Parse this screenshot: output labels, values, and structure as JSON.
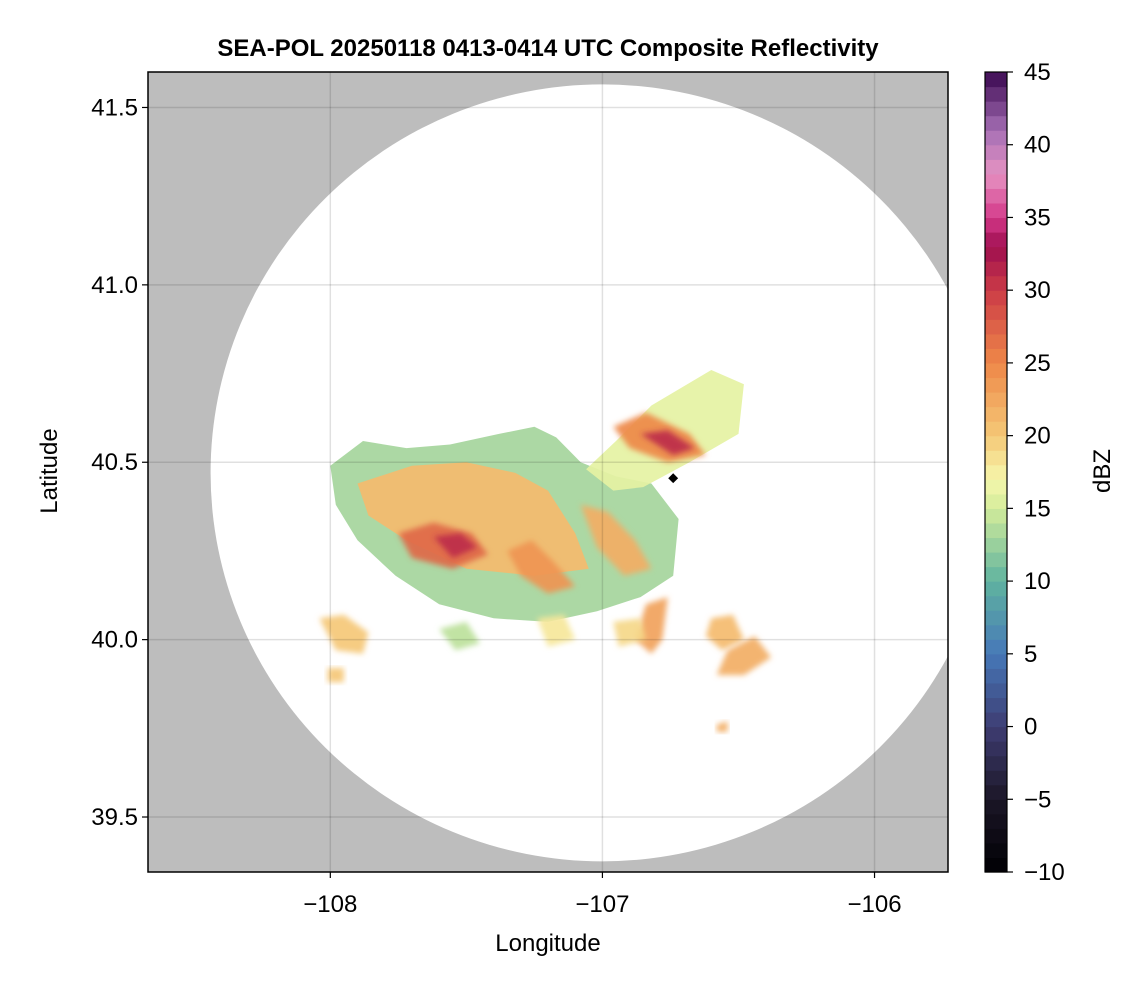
{
  "chart_data": {
    "type": "heatmap",
    "title": "SEA-POL 20250118 0413-0414 UTC Composite Reflectivity",
    "xlabel": "Longitude",
    "ylabel": "Latitude",
    "xlim": [
      -108.67,
      -105.73
    ],
    "ylim": [
      39.345,
      41.6
    ],
    "xticks": [
      -108,
      -107,
      -106
    ],
    "xtick_labels": [
      "−108",
      "−107",
      "−106"
    ],
    "yticks": [
      39.5,
      40.0,
      40.5,
      41.0,
      41.5
    ],
    "ytick_labels": [
      "39.5",
      "40.0",
      "40.5",
      "41.0",
      "41.5"
    ],
    "grid": true,
    "background_color": "#bdbdbd",
    "radar_coverage": {
      "center_lon": -107.0,
      "center_lat": 40.47,
      "lon_radius": 1.44,
      "lat_radius": 1.095,
      "fill_color": "#ffffff"
    },
    "radar_site": {
      "lon": -106.74,
      "lat": 40.455
    },
    "colorbar": {
      "label": "dBZ",
      "range": [
        -10,
        45
      ],
      "ticks": [
        -10,
        -5,
        0,
        5,
        10,
        15,
        20,
        25,
        30,
        35,
        40,
        45
      ],
      "tick_labels": [
        "−10",
        "−5",
        "0",
        "5",
        "10",
        "15",
        "20",
        "25",
        "30",
        "35",
        "40",
        "45"
      ],
      "colorscale": [
        [
          -10,
          "#000004"
        ],
        [
          -5,
          "#1b1626"
        ],
        [
          0,
          "#3e3d73"
        ],
        [
          5,
          "#4678b8"
        ],
        [
          10,
          "#5fb3a0"
        ],
        [
          15,
          "#d3ec9a"
        ],
        [
          17,
          "#f6f7ac"
        ],
        [
          20,
          "#f5c877"
        ],
        [
          25,
          "#ee8848"
        ],
        [
          30,
          "#cc3b47"
        ],
        [
          33,
          "#9e0e4f"
        ],
        [
          35,
          "#d4398a"
        ],
        [
          38,
          "#e693c2"
        ],
        [
          41,
          "#a56fb5"
        ],
        [
          45,
          "#3b0850"
        ]
      ]
    },
    "echo_regions": [
      {
        "shape": [
          [
            -108.0,
            40.49
          ],
          [
            -107.88,
            40.56
          ],
          [
            -107.72,
            40.54
          ],
          [
            -107.56,
            40.55
          ],
          [
            -107.38,
            40.58
          ],
          [
            -107.25,
            40.6
          ],
          [
            -107.17,
            40.57
          ],
          [
            -107.08,
            40.5
          ],
          [
            -106.95,
            40.46
          ],
          [
            -106.82,
            40.44
          ],
          [
            -106.72,
            40.34
          ],
          [
            -106.74,
            40.18
          ],
          [
            -106.86,
            40.12
          ],
          [
            -107.02,
            40.08
          ],
          [
            -107.2,
            40.05
          ],
          [
            -107.4,
            40.06
          ],
          [
            -107.6,
            40.1
          ],
          [
            -107.76,
            40.18
          ],
          [
            -107.9,
            40.28
          ],
          [
            -107.98,
            40.38
          ]
        ],
        "value": 13
      },
      {
        "shape": [
          [
            -107.06,
            40.48
          ],
          [
            -106.95,
            40.56
          ],
          [
            -106.82,
            40.66
          ],
          [
            -106.6,
            40.76
          ],
          [
            -106.48,
            40.72
          ],
          [
            -106.5,
            40.58
          ],
          [
            -106.68,
            40.5
          ],
          [
            -106.85,
            40.43
          ],
          [
            -106.96,
            40.42
          ]
        ],
        "value": 16
      },
      {
        "shape": [
          [
            -107.9,
            40.44
          ],
          [
            -107.7,
            40.49
          ],
          [
            -107.5,
            40.5
          ],
          [
            -107.32,
            40.47
          ],
          [
            -107.2,
            40.42
          ],
          [
            -107.1,
            40.3
          ],
          [
            -107.05,
            40.2
          ],
          [
            -107.25,
            40.18
          ],
          [
            -107.5,
            40.2
          ],
          [
            -107.72,
            40.28
          ],
          [
            -107.86,
            40.35
          ]
        ],
        "value": 21
      },
      {
        "shape": [
          [
            -107.75,
            40.3
          ],
          [
            -107.62,
            40.33
          ],
          [
            -107.48,
            40.3
          ],
          [
            -107.42,
            40.24
          ],
          [
            -107.55,
            40.2
          ],
          [
            -107.7,
            40.23
          ]
        ],
        "value": 27
      },
      {
        "shape": [
          [
            -107.62,
            40.29
          ],
          [
            -107.52,
            40.3
          ],
          [
            -107.46,
            40.26
          ],
          [
            -107.55,
            40.23
          ]
        ],
        "value": 31
      },
      {
        "shape": [
          [
            -107.35,
            40.25
          ],
          [
            -107.26,
            40.28
          ],
          [
            -107.18,
            40.22
          ],
          [
            -107.1,
            40.15
          ],
          [
            -107.2,
            40.13
          ],
          [
            -107.3,
            40.18
          ]
        ],
        "value": 24
      },
      {
        "shape": [
          [
            -107.08,
            40.38
          ],
          [
            -106.98,
            40.36
          ],
          [
            -106.88,
            40.28
          ],
          [
            -106.82,
            40.2
          ],
          [
            -106.92,
            40.18
          ],
          [
            -107.02,
            40.26
          ]
        ],
        "value": 22
      },
      {
        "shape": [
          [
            -106.96,
            40.6
          ],
          [
            -106.84,
            40.64
          ],
          [
            -106.68,
            40.58
          ],
          [
            -106.62,
            40.52
          ],
          [
            -106.76,
            40.5
          ],
          [
            -106.9,
            40.54
          ]
        ],
        "value": 25
      },
      {
        "shape": [
          [
            -106.86,
            40.58
          ],
          [
            -106.76,
            40.59
          ],
          [
            -106.66,
            40.54
          ],
          [
            -106.74,
            40.52
          ]
        ],
        "value": 31
      },
      {
        "shape": [
          [
            -108.04,
            40.06
          ],
          [
            -107.95,
            40.07
          ],
          [
            -107.86,
            40.02
          ],
          [
            -107.88,
            39.96
          ],
          [
            -107.98,
            39.97
          ]
        ],
        "value": 20
      },
      {
        "shape": [
          [
            -106.84,
            40.1
          ],
          [
            -106.76,
            40.12
          ],
          [
            -106.78,
            40.0
          ],
          [
            -106.82,
            39.96
          ],
          [
            -106.88,
            40.0
          ]
        ],
        "value": 23
      },
      {
        "shape": [
          [
            -106.6,
            40.06
          ],
          [
            -106.52,
            40.07
          ],
          [
            -106.48,
            40.0
          ],
          [
            -106.56,
            39.97
          ],
          [
            -106.62,
            40.01
          ]
        ],
        "value": 21
      },
      {
        "shape": [
          [
            -106.54,
            39.97
          ],
          [
            -106.44,
            40.01
          ],
          [
            -106.38,
            39.95
          ],
          [
            -106.48,
            39.9
          ],
          [
            -106.58,
            39.9
          ]
        ],
        "value": 22
      },
      {
        "shape": [
          [
            -107.6,
            40.03
          ],
          [
            -107.5,
            40.05
          ],
          [
            -107.45,
            39.99
          ],
          [
            -107.54,
            39.97
          ]
        ],
        "value": 14
      },
      {
        "shape": [
          [
            -107.24,
            40.06
          ],
          [
            -107.14,
            40.07
          ],
          [
            -107.1,
            40.0
          ],
          [
            -107.2,
            39.98
          ]
        ],
        "value": 18
      },
      {
        "shape": [
          [
            -106.96,
            40.05
          ],
          [
            -106.86,
            40.06
          ],
          [
            -106.84,
            40.0
          ],
          [
            -106.94,
            39.98
          ]
        ],
        "value": 19
      },
      {
        "shape": [
          [
            -108.01,
            39.92
          ],
          [
            -107.95,
            39.92
          ],
          [
            -107.95,
            39.88
          ],
          [
            -108.01,
            39.88
          ]
        ],
        "value": 20
      },
      {
        "shape": [
          [
            -106.58,
            39.76
          ],
          [
            -106.54,
            39.77
          ],
          [
            -106.54,
            39.74
          ],
          [
            -106.58,
            39.74
          ]
        ],
        "value": 22
      }
    ]
  }
}
